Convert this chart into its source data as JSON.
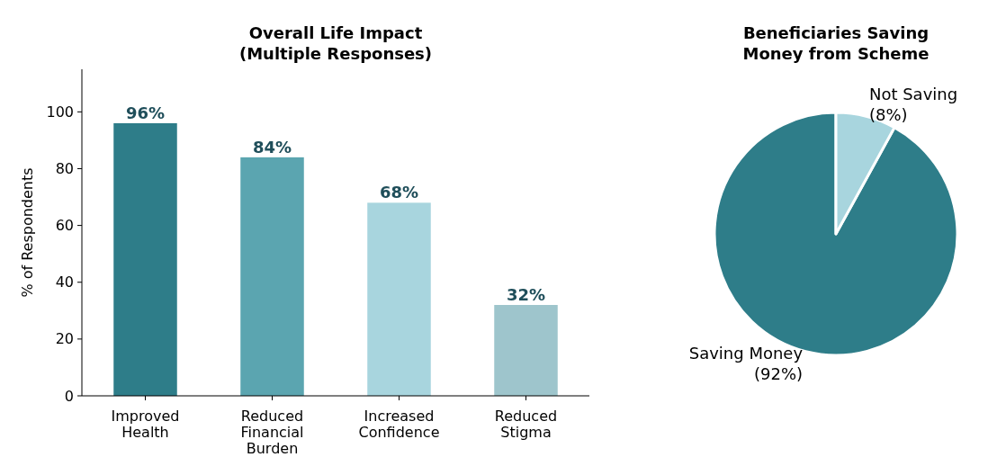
{
  "chart_data": [
    {
      "type": "bar",
      "title": "Overall Life Impact\n(Multiple Responses)",
      "ylabel": "% of Respondents",
      "categories": [
        "Improved\nHealth",
        "Reduced\nFinancial\nBurden",
        "Increased\nConfidence",
        "Reduced\nStigma"
      ],
      "values": [
        96,
        84,
        68,
        32
      ],
      "colors": [
        "#2e7d89",
        "#5ba5b0",
        "#a8d5de",
        "#9ec5cc"
      ],
      "value_labels": [
        "96%",
        "84%",
        "68%",
        "32%"
      ],
      "ylim": [
        0,
        115
      ],
      "yticks": [
        0,
        20,
        40,
        60,
        80,
        100
      ],
      "grid": false
    },
    {
      "type": "pie",
      "title": "Beneficiaries Saving\nMoney from Scheme",
      "categories": [
        "Saving Money",
        "Not Saving"
      ],
      "values": [
        92,
        8
      ],
      "colors": [
        "#2e7d89",
        "#a8d5de"
      ],
      "value_labels": [
        "(92%)",
        "(8%)"
      ],
      "legend": false
    }
  ]
}
